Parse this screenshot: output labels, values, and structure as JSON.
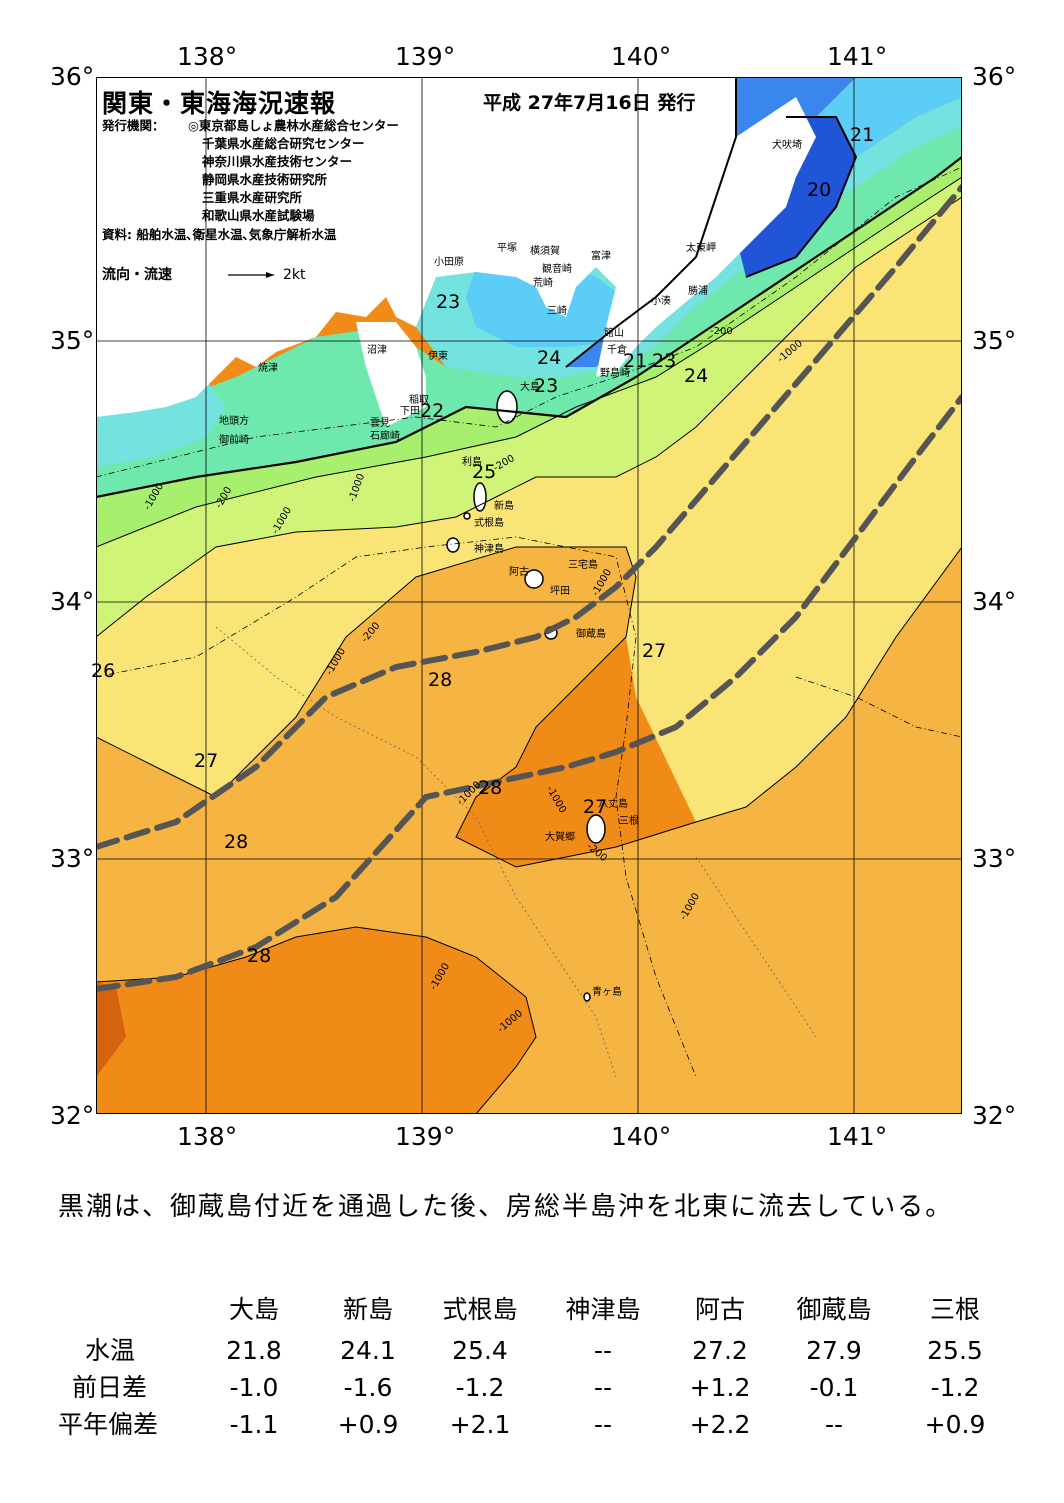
{
  "header": {
    "title": "関東・東海海況速報",
    "issue_date": "平成 27年7月16日 発行",
    "issuer_label": "発行機関：",
    "issuers": [
      "◎東京都島しょ農林水産総合センター",
      "千葉県水産総合研究センター",
      "神奈川県水産技術センター",
      "静岡県水産技術研究所",
      "三重県水産研究所",
      "和歌山県水産試験場"
    ],
    "source": "資料: 船舶水温､衛星水温､気象庁解析水温",
    "current_legend_label": "流向・流速",
    "current_legend_scale": "2kt"
  },
  "axes": {
    "lon_ticks": [
      "138°",
      "139°",
      "140°",
      "141°"
    ],
    "lat_ticks": [
      "36°",
      "35°",
      "34°",
      "33°",
      "32°"
    ]
  },
  "place_names": [
    "犬吠埼",
    "太東岬",
    "勝浦",
    "小湊",
    "富津",
    "館山",
    "千倉",
    "野島崎",
    "横須賀",
    "観音崎",
    "荒崎",
    "三崎",
    "平塚",
    "小田原",
    "沼津",
    "伊東",
    "焼津",
    "稲取",
    "下田",
    "雲見",
    "石廊崎",
    "地頭方",
    "御前崎",
    "大島",
    "利島",
    "新島",
    "式根島",
    "神津島",
    "三宅島",
    "阿古",
    "坪田",
    "御蔵島",
    "八丈島",
    "三根",
    "大賀郷",
    "青ヶ島"
  ],
  "temperature_labels": [
    "21",
    "20",
    "23",
    "24",
    "21",
    "23",
    "24",
    "23",
    "22",
    "25",
    "26",
    "27",
    "28",
    "27",
    "28",
    "27",
    "28",
    "28"
  ],
  "depth_labels": [
    "-200",
    "-1000"
  ],
  "colors": {
    "t20": "#1f55d6",
    "t21": "#3a86ef",
    "t22": "#5bcdf6",
    "t23": "#74e3e0",
    "t24": "#6ee8ac",
    "t25": "#a8ef6e",
    "t25b": "#cff478",
    "t26": "#fbe476",
    "t27": "#f6b542",
    "t28": "#ef8b16",
    "t29": "#d5620f",
    "land": "#ffffff",
    "kuroshio": "#555555"
  },
  "summary": "黒潮は、御蔵島付近を通過した後、房総半島沖を北東に流去している。",
  "table": {
    "columns": [
      "大島",
      "新島",
      "式根島",
      "神津島",
      "阿古",
      "御蔵島",
      "三根"
    ],
    "rows": [
      {
        "label": "水温",
        "values": [
          "21.8",
          "24.1",
          "25.4",
          "--",
          "27.2",
          "27.9",
          "25.5"
        ]
      },
      {
        "label": "前日差",
        "values": [
          "-1.0",
          "-1.6",
          "-1.2",
          "--",
          "+1.2",
          "-0.1",
          "-1.2"
        ]
      },
      {
        "label": "平年偏差",
        "values": [
          "-1.1",
          "+0.9",
          "+2.1",
          "--",
          "+2.2",
          "--",
          "+0.9"
        ]
      }
    ]
  }
}
